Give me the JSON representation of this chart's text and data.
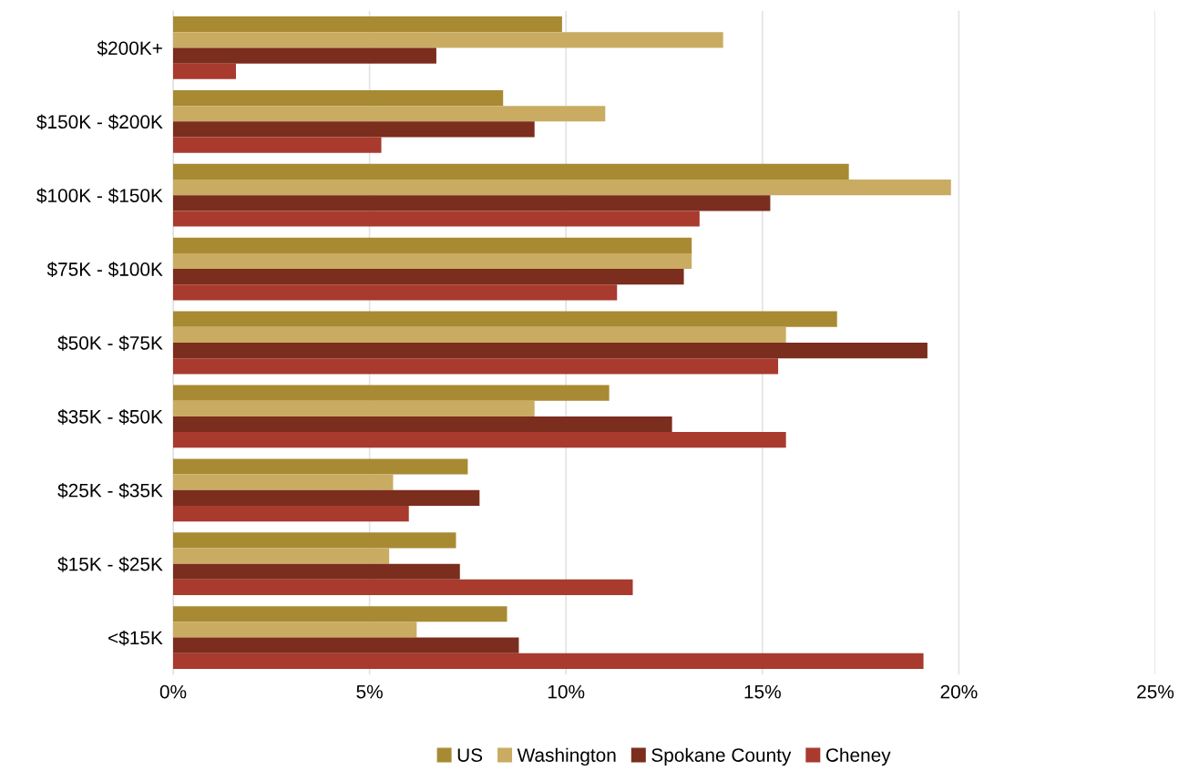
{
  "chart_data": {
    "type": "bar",
    "orientation": "horizontal",
    "categories": [
      "$200K+",
      "$150K - $200K",
      "$100K - $150K",
      "$75K - $100K",
      "$50K - $75K",
      "$35K - $50K",
      "$25K - $35K",
      "$15K - $25K",
      "<$15K"
    ],
    "series": [
      {
        "name": "US",
        "color": "#a88a33",
        "values": [
          9.9,
          8.4,
          17.2,
          13.2,
          16.9,
          11.1,
          7.5,
          7.2,
          8.5
        ]
      },
      {
        "name": "Washington",
        "color": "#c9ac62",
        "values": [
          14.0,
          11.0,
          19.8,
          13.2,
          15.6,
          9.2,
          5.6,
          5.5,
          6.2
        ]
      },
      {
        "name": "Spokane County",
        "color": "#7b2d1e",
        "values": [
          6.7,
          9.2,
          15.2,
          13.0,
          19.2,
          12.7,
          7.8,
          7.3,
          8.8
        ]
      },
      {
        "name": "Cheney",
        "color": "#a83a2e",
        "values": [
          1.6,
          5.3,
          13.4,
          11.3,
          15.4,
          15.6,
          6.0,
          11.7,
          19.1
        ]
      }
    ],
    "xlim": [
      0,
      25
    ],
    "xticks": [
      {
        "value": 0,
        "label": "0%"
      },
      {
        "value": 5,
        "label": "5%"
      },
      {
        "value": 10,
        "label": "10%"
      },
      {
        "value": 15,
        "label": "15%"
      },
      {
        "value": 20,
        "label": "20%"
      },
      {
        "value": 25,
        "label": "25%"
      }
    ],
    "grid": "x",
    "legend": "bottom"
  }
}
